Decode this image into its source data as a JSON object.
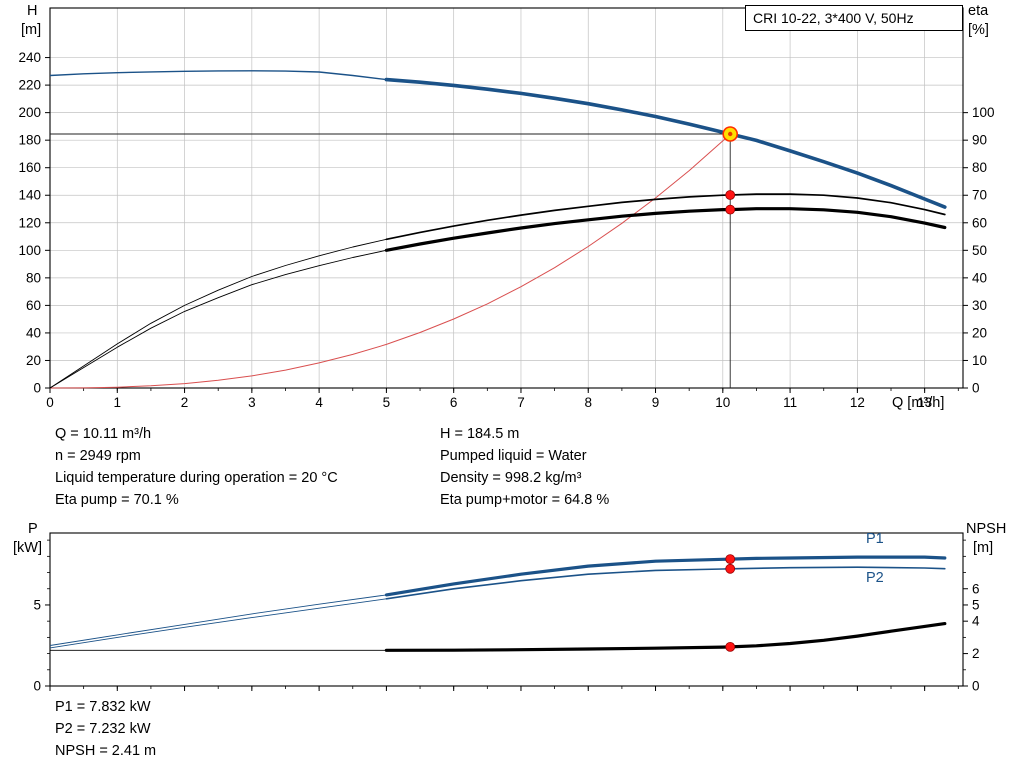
{
  "colors": {
    "blue": "#1b5288",
    "black": "#000000",
    "red": "#d94f4f",
    "thin_black": "#222222",
    "grid": "#c2c2c2",
    "dot": "#ff1414",
    "dot_stroke": "#990000",
    "duty_fill": "#ffdf00",
    "duty_stroke": "#ff2d00",
    "duty_inner": "#e83b00"
  },
  "info": {
    "left": [
      "Q = 10.11 m³/h",
      "n = 2949 rpm",
      "Liquid temperature during operation = 20 °C",
      "Eta pump = 70.1 %"
    ],
    "right": [
      "H = 184.5 m",
      "Pumped liquid = Water",
      "Density = 998.2 kg/m³",
      "Eta pump+motor = 64.8 %"
    ],
    "bottom": [
      "P1 = 7.832 kW",
      "P2 = 7.232 kW",
      "NPSH = 2.41 m"
    ]
  },
  "chart_data": [
    {
      "type": "line",
      "title": "CRI 10-22, 3*400 V, 50Hz",
      "xlabel": "Q [m³/h]",
      "ylabel_left": "H",
      "yunit_left": "[m]",
      "ylabel_right": "eta",
      "yunit_right": "[%]",
      "xlim": [
        0,
        13.57
      ],
      "ylim_left": [
        0,
        276
      ],
      "ylim_right": [
        0,
        138
      ],
      "x_ticks": [
        0,
        1,
        2,
        3,
        4,
        5,
        6,
        7,
        8,
        9,
        10,
        11,
        12,
        13
      ],
      "x_minor_step": 0.5,
      "x_tick_labels": true,
      "y_ticks_left": [
        0,
        20,
        40,
        60,
        80,
        100,
        120,
        140,
        160,
        180,
        200,
        220,
        240
      ],
      "y_ticks_right": [
        0,
        10,
        20,
        30,
        40,
        50,
        60,
        70,
        80,
        90,
        100
      ],
      "y_minor_left": [],
      "y_minor_right": [],
      "grid": true,
      "duty_point": {
        "Q": 10.11,
        "H": 184.5,
        "eta_pump": 70.1,
        "eta_pump_motor": 64.8
      },
      "series": [
        {
          "name": "duty-flow-line",
          "axis": "left",
          "color": "thin_black",
          "width": 0.9,
          "points": [
            [
              10.11,
              0
            ],
            [
              10.11,
              184.5
            ]
          ]
        },
        {
          "name": "duty-head-line",
          "axis": "left",
          "color": "thin_black",
          "width": 0.9,
          "points": [
            [
              0,
              184.5
            ],
            [
              10.11,
              184.5
            ]
          ]
        },
        {
          "name": "system-curve",
          "axis": "left",
          "color": "red",
          "width": 1,
          "points": [
            [
              0,
              0
            ],
            [
              0.5,
              0.1
            ],
            [
              1,
              0.6
            ],
            [
              1.5,
              1.6
            ],
            [
              2,
              3.2
            ],
            [
              2.5,
              5.6
            ],
            [
              3,
              8.8
            ],
            [
              3.5,
              13
            ],
            [
              4,
              18.2
            ],
            [
              4.5,
              24.4
            ],
            [
              5,
              31.7
            ],
            [
              5.5,
              40.3
            ],
            [
              6,
              50.1
            ],
            [
              6.5,
              61.1
            ],
            [
              7,
              73.6
            ],
            [
              7.5,
              87.4
            ],
            [
              8,
              102.8
            ],
            [
              8.5,
              119.6
            ],
            [
              9,
              138
            ],
            [
              9.5,
              157.9
            ],
            [
              10,
              179.5
            ],
            [
              10.11,
              184.5
            ]
          ]
        },
        {
          "name": "eta-pump-motor",
          "axis": "right",
          "color": "black",
          "width": 0.9,
          "bold_from": 5,
          "bold_width": 3.2,
          "points": [
            [
              0,
              0
            ],
            [
              0.5,
              7.4
            ],
            [
              1,
              14.8
            ],
            [
              1.5,
              21.7
            ],
            [
              2,
              27.8
            ],
            [
              2.5,
              32.8
            ],
            [
              3,
              37.5
            ],
            [
              3.5,
              41.2
            ],
            [
              4,
              44.4
            ],
            [
              4.5,
              47.4
            ],
            [
              5,
              50
            ],
            [
              5.5,
              52.3
            ],
            [
              6,
              54.4
            ],
            [
              6.5,
              56.3
            ],
            [
              7,
              58.1
            ],
            [
              7.5,
              59.7
            ],
            [
              8,
              61.1
            ],
            [
              8.5,
              62.4
            ],
            [
              9,
              63.4
            ],
            [
              9.5,
              64.2
            ],
            [
              10,
              64.8
            ],
            [
              10.11,
              64.8
            ],
            [
              10.5,
              65.1
            ],
            [
              11,
              65.1
            ],
            [
              11.5,
              64.7
            ],
            [
              12,
              63.8
            ],
            [
              12.5,
              62.2
            ],
            [
              13,
              59.9
            ],
            [
              13.3,
              58.3
            ]
          ]
        },
        {
          "name": "eta-pump",
          "axis": "right",
          "color": "black",
          "width": 0.9,
          "bold_from": 5,
          "bold_width": 1.7,
          "points": [
            [
              0,
              0
            ],
            [
              0.5,
              8
            ],
            [
              1,
              16
            ],
            [
              1.5,
              23.5
            ],
            [
              2,
              30
            ],
            [
              2.5,
              35.5
            ],
            [
              3,
              40.5
            ],
            [
              3.5,
              44.5
            ],
            [
              4,
              48
            ],
            [
              4.5,
              51.2
            ],
            [
              5,
              54
            ],
            [
              5.5,
              56.5
            ],
            [
              6,
              58.8
            ],
            [
              6.5,
              60.9
            ],
            [
              7,
              62.8
            ],
            [
              7.5,
              64.5
            ],
            [
              8,
              66
            ],
            [
              8.5,
              67.4
            ],
            [
              9,
              68.5
            ],
            [
              9.5,
              69.4
            ],
            [
              10,
              70
            ],
            [
              10.11,
              70.1
            ],
            [
              10.5,
              70.4
            ],
            [
              11,
              70.4
            ],
            [
              11.5,
              70
            ],
            [
              12,
              69
            ],
            [
              12.5,
              67.3
            ],
            [
              13,
              64.8
            ],
            [
              13.3,
              63
            ]
          ]
        },
        {
          "name": "H-curve",
          "axis": "left",
          "color": "blue",
          "width": 1.4,
          "bold_from": 5,
          "bold_width": 3.6,
          "points": [
            [
              0,
              227
            ],
            [
              0.5,
              228.2
            ],
            [
              1,
              229
            ],
            [
              1.5,
              229.6
            ],
            [
              2,
              230
            ],
            [
              2.5,
              230.3
            ],
            [
              3,
              230.4
            ],
            [
              3.5,
              230.2
            ],
            [
              4,
              229.5
            ],
            [
              4.5,
              227
            ],
            [
              5,
              224
            ],
            [
              5.5,
              222.1
            ],
            [
              6,
              219.8
            ],
            [
              6.5,
              217
            ],
            [
              7,
              214
            ],
            [
              7.5,
              210.4
            ],
            [
              8,
              206.5
            ],
            [
              8.5,
              202
            ],
            [
              9,
              197.2
            ],
            [
              9.5,
              191.7
            ],
            [
              10,
              185.8
            ],
            [
              10.11,
              184.5
            ],
            [
              10.5,
              179.8
            ],
            [
              11,
              172.2
            ],
            [
              11.5,
              164.4
            ],
            [
              12,
              156.1
            ],
            [
              12.5,
              147
            ],
            [
              13,
              137.3
            ],
            [
              13.3,
              131.4
            ]
          ]
        }
      ],
      "markers": [
        {
          "name": "eta-pump-point",
          "x": 10.11,
          "y": 70.1,
          "axis": "right",
          "r": 4.5,
          "fill": "dot",
          "stroke": "dot_stroke",
          "sw": 0.8
        },
        {
          "name": "eta-pump-motor-point",
          "x": 10.11,
          "y": 64.8,
          "axis": "right",
          "r": 4.5,
          "fill": "dot",
          "stroke": "dot_stroke",
          "sw": 0.8
        },
        {
          "name": "duty-point-marker",
          "x": 10.11,
          "y": 184.5,
          "axis": "left",
          "r": 7,
          "fill": "duty_fill",
          "stroke": "duty_stroke",
          "sw": 1.6,
          "inner": "duty_inner"
        }
      ]
    },
    {
      "type": "line",
      "title": "",
      "xlabel": "",
      "ylabel_left": "P",
      "yunit_left": "[kW]",
      "ylabel_right": "NPSH",
      "yunit_right": "[m]",
      "xlim": [
        0,
        13.57
      ],
      "ylim_left": [
        0,
        9.44
      ],
      "ylim_right": [
        0,
        9.44
      ],
      "x_ticks": [
        0,
        1,
        2,
        3,
        4,
        5,
        6,
        7,
        8,
        9,
        10,
        11,
        12,
        13
      ],
      "x_minor_step": 0.5,
      "x_tick_labels": false,
      "y_ticks_left": [
        0,
        5
      ],
      "y_ticks_right": [
        0,
        2,
        4,
        5,
        6
      ],
      "y_minor_left": [
        1,
        2,
        3,
        4,
        6,
        7,
        8,
        9
      ],
      "y_minor_right": [
        1,
        3,
        7,
        8,
        9
      ],
      "grid": false,
      "duty_point": {
        "Q": 10.11,
        "P1": 7.832,
        "P2": 7.232,
        "NPSH": 2.41
      },
      "series": [
        {
          "name": "P1",
          "axis": "left",
          "color": "blue",
          "width": 0.9,
          "bold_from": 5,
          "bold_width": 3.2,
          "points": [
            [
              0,
              2.5
            ],
            [
              1,
              3.15
            ],
            [
              2,
              3.8
            ],
            [
              3,
              4.45
            ],
            [
              4,
              5.05
            ],
            [
              5,
              5.62
            ],
            [
              6,
              6.3
            ],
            [
              7,
              6.9
            ],
            [
              8,
              7.4
            ],
            [
              9,
              7.7
            ],
            [
              10,
              7.82
            ],
            [
              10.11,
              7.832
            ],
            [
              10.5,
              7.87
            ],
            [
              11,
              7.9
            ],
            [
              12,
              7.95
            ],
            [
              13,
              7.95
            ],
            [
              13.3,
              7.9
            ]
          ]
        },
        {
          "name": "P2",
          "axis": "left",
          "color": "blue",
          "width": 0.9,
          "bold_from": 5,
          "bold_width": 1.6,
          "points": [
            [
              0,
              2.35
            ],
            [
              1,
              3.0
            ],
            [
              2,
              3.62
            ],
            [
              3,
              4.22
            ],
            [
              4,
              4.8
            ],
            [
              5,
              5.38
            ],
            [
              6,
              6.0
            ],
            [
              7,
              6.5
            ],
            [
              8,
              6.9
            ],
            [
              9,
              7.13
            ],
            [
              10,
              7.22
            ],
            [
              10.11,
              7.232
            ],
            [
              11,
              7.3
            ],
            [
              12,
              7.33
            ],
            [
              13,
              7.28
            ],
            [
              13.3,
              7.24
            ]
          ]
        },
        {
          "name": "NPSH",
          "axis": "right",
          "color": "black",
          "width": 0.9,
          "bold_from": 5,
          "bold_width": 3.2,
          "points": [
            [
              0,
              2.2
            ],
            [
              1,
              2.2
            ],
            [
              2,
              2.2
            ],
            [
              3,
              2.2
            ],
            [
              4,
              2.2
            ],
            [
              5,
              2.2
            ],
            [
              6,
              2.21
            ],
            [
              7,
              2.24
            ],
            [
              8,
              2.28
            ],
            [
              9,
              2.33
            ],
            [
              10,
              2.4
            ],
            [
              10.11,
              2.41
            ],
            [
              10.5,
              2.48
            ],
            [
              11,
              2.62
            ],
            [
              11.5,
              2.82
            ],
            [
              12,
              3.08
            ],
            [
              12.5,
              3.38
            ],
            [
              13,
              3.68
            ],
            [
              13.3,
              3.85
            ]
          ]
        }
      ],
      "markers": [
        {
          "name": "p1-point",
          "x": 10.11,
          "y": 7.832,
          "axis": "left",
          "r": 4.5,
          "fill": "dot",
          "stroke": "dot_stroke",
          "sw": 0.8
        },
        {
          "name": "p2-point",
          "x": 10.11,
          "y": 7.232,
          "axis": "left",
          "r": 4.5,
          "fill": "dot",
          "stroke": "dot_stroke",
          "sw": 0.8
        },
        {
          "name": "npsh-point",
          "x": 10.11,
          "y": 2.41,
          "axis": "right",
          "r": 4.5,
          "fill": "dot",
          "stroke": "dot_stroke",
          "sw": 0.8
        }
      ]
    }
  ]
}
